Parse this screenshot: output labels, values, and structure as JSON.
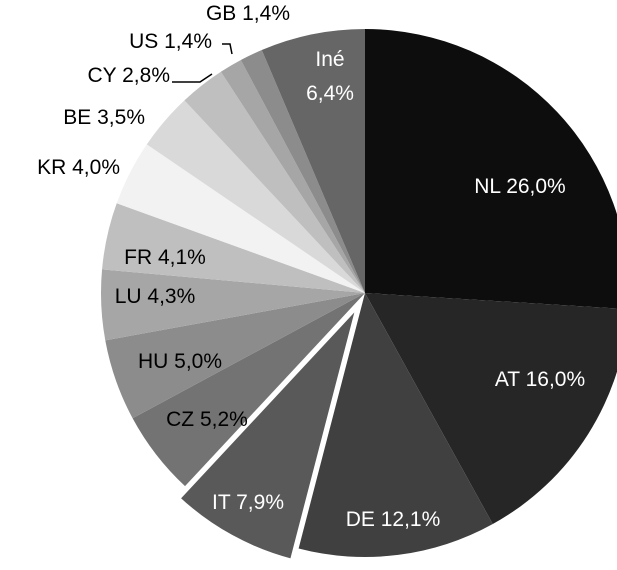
{
  "chart_data": {
    "type": "pie",
    "categories": [
      "NL",
      "AT",
      "DE",
      "IT",
      "CZ",
      "HU",
      "LU",
      "FR",
      "KR",
      "BE",
      "CY",
      "US",
      "GB",
      "Iné"
    ],
    "values": [
      26.0,
      16.0,
      12.1,
      7.9,
      5.2,
      5.0,
      4.3,
      4.1,
      4.0,
      3.5,
      2.8,
      1.4,
      1.4,
      6.4
    ],
    "value_labels": [
      "26,0%",
      "16,0%",
      "12,1%",
      "7,9%",
      "5,2%",
      "5,0%",
      "4,3%",
      "4,1%",
      "4,0%",
      "3,5%",
      "2,8%",
      "1,4%",
      "1,4%",
      "6,4%"
    ],
    "colors": [
      "#0d0d0d",
      "#262626",
      "#404040",
      "#595959",
      "#737373",
      "#8c8c8c",
      "#a6a6a6",
      "#bfbfbf",
      "#f2f2f2",
      "#d9d9d9",
      "#bfbfbf",
      "#a6a6a6",
      "#8c8c8c",
      "#666666"
    ],
    "exploded": [
      3
    ]
  }
}
